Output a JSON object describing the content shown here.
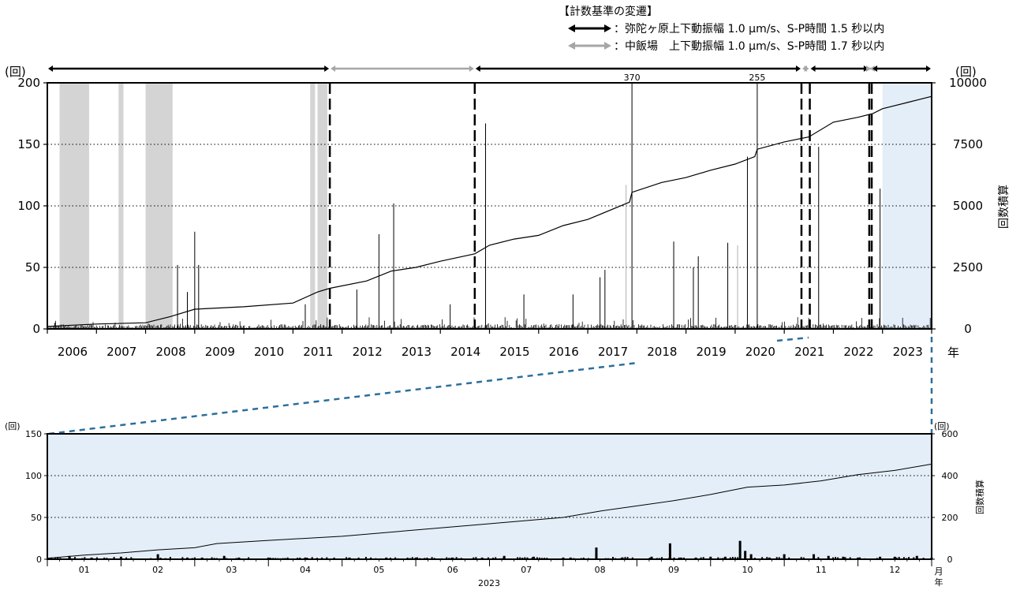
{
  "legend": {
    "title": "【計数基準の変遷】",
    "line1": "：弥陀ヶ原上下動振幅 1.0 μm/s、S-P時間 1.5 秒以内",
    "line2": "：中飯場　上下動振幅 1.0 μm/s、S-P時間 1.7 秒以内",
    "color_dark": "#000000",
    "color_light": "#a6a6a6"
  },
  "chart_data": [
    {
      "type": "bar",
      "left_unit": "(回)",
      "right_unit": "(回)",
      "right_axis_label": "回数積算",
      "x_unit": "年",
      "x_ticks": [
        "2006",
        "2007",
        "2008",
        "2009",
        "2010",
        "2011",
        "2012",
        "2013",
        "2014",
        "2015",
        "2016",
        "2017",
        "2018",
        "2019",
        "2020",
        "2021",
        "2022",
        "2023"
      ],
      "xlim": [
        2006,
        2024
      ],
      "ylim": [
        0,
        200
      ],
      "y2lim": [
        0,
        10000
      ],
      "y_ticks": [
        "0",
        "50",
        "100",
        "150",
        "200"
      ],
      "y2_ticks": [
        "0",
        "2500",
        "5000",
        "7500",
        "10000"
      ],
      "grid": "horizontal dotted",
      "highlight": {
        "from": 2023.0,
        "to": 2024.0,
        "color": "#e3eef8"
      },
      "gray_periods": [
        [
          2006.25,
          2006.85
        ],
        [
          2007.45,
          2007.55
        ],
        [
          2008.0,
          2008.55
        ],
        [
          2011.35,
          2011.45
        ],
        [
          2011.5,
          2011.7
        ]
      ],
      "criterion_changes": [
        2011.75,
        2014.7,
        2021.35,
        2021.52,
        2022.73,
        2022.78
      ],
      "criterion_periods": [
        {
          "from": 2006.0,
          "to": 2011.75,
          "color": "dark"
        },
        {
          "from": 2011.75,
          "to": 2014.7,
          "color": "light"
        },
        {
          "from": 2014.7,
          "to": 2021.35,
          "color": "dark"
        },
        {
          "from": 2021.35,
          "to": 2021.52,
          "color": "light"
        },
        {
          "from": 2021.52,
          "to": 2022.73,
          "color": "dark"
        },
        {
          "from": 2022.73,
          "to": 2022.78,
          "color": "light"
        },
        {
          "from": 2022.78,
          "to": 2024.0,
          "color": "dark"
        }
      ],
      "spikes": [
        {
          "x": 2006.15,
          "y": 5
        },
        {
          "x": 2008.65,
          "y": 52
        },
        {
          "x": 2008.85,
          "y": 30
        },
        {
          "x": 2009.0,
          "y": 79
        },
        {
          "x": 2009.08,
          "y": 52
        },
        {
          "x": 2011.25,
          "y": 20
        },
        {
          "x": 2012.3,
          "y": 32
        },
        {
          "x": 2012.75,
          "y": 77
        },
        {
          "x": 2013.05,
          "y": 102
        },
        {
          "x": 2014.2,
          "y": 20
        },
        {
          "x": 2014.92,
          "y": 167
        },
        {
          "x": 2015.7,
          "y": 28
        },
        {
          "x": 2016.7,
          "y": 28
        },
        {
          "x": 2017.25,
          "y": 42
        },
        {
          "x": 2017.35,
          "y": 48
        },
        {
          "x": 2017.9,
          "y": 200,
          "label": "370"
        },
        {
          "x": 2017.78,
          "y": 117,
          "gray": true
        },
        {
          "x": 2018.75,
          "y": 71
        },
        {
          "x": 2019.15,
          "y": 50
        },
        {
          "x": 2019.25,
          "y": 59
        },
        {
          "x": 2019.85,
          "y": 70
        },
        {
          "x": 2020.05,
          "y": 68,
          "gray": true
        },
        {
          "x": 2020.25,
          "y": 140
        },
        {
          "x": 2020.45,
          "y": 200,
          "label": "255"
        },
        {
          "x": 2021.7,
          "y": 148
        },
        {
          "x": 2022.95,
          "y": 114
        }
      ],
      "cumulative": [
        [
          2006.0,
          100
        ],
        [
          2006.5,
          150
        ],
        [
          2007.0,
          200
        ],
        [
          2008.0,
          250
        ],
        [
          2008.5,
          500
        ],
        [
          2009.0,
          800
        ],
        [
          2010.0,
          900
        ],
        [
          2011.0,
          1050
        ],
        [
          2011.5,
          1500
        ],
        [
          2011.75,
          1650
        ],
        [
          2012.5,
          1950
        ],
        [
          2013.0,
          2350
        ],
        [
          2013.5,
          2500
        ],
        [
          2014.0,
          2750
        ],
        [
          2014.7,
          3050
        ],
        [
          2015.0,
          3400
        ],
        [
          2015.5,
          3650
        ],
        [
          2016.0,
          3800
        ],
        [
          2016.5,
          4200
        ],
        [
          2017.0,
          4450
        ],
        [
          2017.85,
          5150
        ],
        [
          2017.9,
          5550
        ],
        [
          2018.5,
          5950
        ],
        [
          2019.0,
          6150
        ],
        [
          2019.5,
          6450
        ],
        [
          2020.0,
          6700
        ],
        [
          2020.4,
          7000
        ],
        [
          2020.45,
          7300
        ],
        [
          2021.0,
          7600
        ],
        [
          2021.5,
          7800
        ],
        [
          2022.0,
          8400
        ],
        [
          2022.5,
          8600
        ],
        [
          2022.8,
          8750
        ],
        [
          2023.0,
          8950
        ],
        [
          2023.5,
          9200
        ],
        [
          2024.0,
          9450
        ]
      ]
    },
    {
      "type": "bar",
      "left_unit": "(回)",
      "right_unit": "(回)",
      "right_axis_label": "回数積算",
      "x_unit_top": "月",
      "x_unit_bottom": "年",
      "year_label": "2023",
      "month_ticks": [
        "01",
        "02",
        "03",
        "04",
        "05",
        "06",
        "07",
        "08",
        "09",
        "10",
        "11",
        "12"
      ],
      "xlim": [
        0,
        12
      ],
      "ylim": [
        0,
        150
      ],
      "y2lim": [
        0,
        600
      ],
      "y_ticks": [
        "0",
        "50",
        "100",
        "150"
      ],
      "y2_ticks": [
        "0",
        "200",
        "400",
        "600"
      ],
      "grid": "horizontal dotted",
      "bars": [
        {
          "x": 0.05,
          "y": 2
        },
        {
          "x": 0.3,
          "y": 4
        },
        {
          "x": 0.6,
          "y": 2
        },
        {
          "x": 1.0,
          "y": 3
        },
        {
          "x": 1.5,
          "y": 6
        },
        {
          "x": 1.9,
          "y": 2
        },
        {
          "x": 2.1,
          "y": 2
        },
        {
          "x": 2.4,
          "y": 4
        },
        {
          "x": 2.6,
          "y": 2
        },
        {
          "x": 3.0,
          "y": 2
        },
        {
          "x": 3.5,
          "y": 2
        },
        {
          "x": 4.1,
          "y": 2
        },
        {
          "x": 4.6,
          "y": 2
        },
        {
          "x": 5.0,
          "y": 2
        },
        {
          "x": 5.5,
          "y": 2
        },
        {
          "x": 5.9,
          "y": 2
        },
        {
          "x": 6.2,
          "y": 4
        },
        {
          "x": 6.6,
          "y": 3
        },
        {
          "x": 7.0,
          "y": 2
        },
        {
          "x": 7.1,
          "y": 2
        },
        {
          "x": 7.45,
          "y": 14
        },
        {
          "x": 7.8,
          "y": 2
        },
        {
          "x": 8.2,
          "y": 3
        },
        {
          "x": 8.45,
          "y": 19
        },
        {
          "x": 8.6,
          "y": 2
        },
        {
          "x": 8.8,
          "y": 2
        },
        {
          "x": 9.0,
          "y": 3
        },
        {
          "x": 9.2,
          "y": 3
        },
        {
          "x": 9.4,
          "y": 22
        },
        {
          "x": 9.47,
          "y": 10
        },
        {
          "x": 9.55,
          "y": 6
        },
        {
          "x": 9.8,
          "y": 2
        },
        {
          "x": 10.0,
          "y": 6
        },
        {
          "x": 10.4,
          "y": 6
        },
        {
          "x": 10.6,
          "y": 4
        },
        {
          "x": 10.8,
          "y": 3
        },
        {
          "x": 11.0,
          "y": 2
        },
        {
          "x": 11.3,
          "y": 3
        },
        {
          "x": 11.5,
          "y": 3
        },
        {
          "x": 11.8,
          "y": 4
        },
        {
          "x": 12.0,
          "y": 2
        }
      ],
      "cumulative": [
        [
          0,
          5
        ],
        [
          0.5,
          20
        ],
        [
          1,
          30
        ],
        [
          1.5,
          45
        ],
        [
          2,
          55
        ],
        [
          2.3,
          75
        ],
        [
          3,
          90
        ],
        [
          4,
          110
        ],
        [
          5,
          140
        ],
        [
          6,
          170
        ],
        [
          7,
          200
        ],
        [
          7.5,
          230
        ],
        [
          8,
          255
        ],
        [
          8.5,
          280
        ],
        [
          9,
          310
        ],
        [
          9.5,
          345
        ],
        [
          10,
          355
        ],
        [
          10.5,
          375
        ],
        [
          11,
          405
        ],
        [
          11.5,
          425
        ],
        [
          12,
          455
        ]
      ]
    }
  ]
}
